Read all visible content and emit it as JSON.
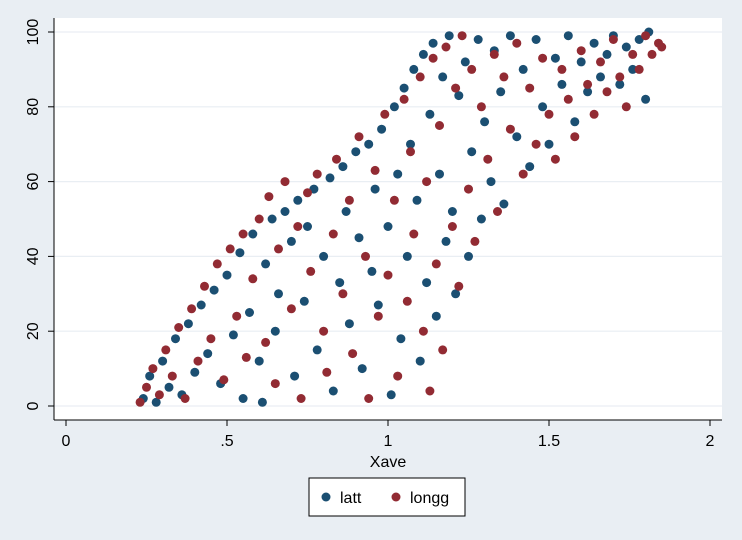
{
  "chart_data": {
    "type": "scatter",
    "title": "",
    "xlabel": "Xave",
    "ylabel": "",
    "xlim": [
      0,
      2
    ],
    "ylim": [
      0,
      100
    ],
    "x_ticks": [
      0,
      0.5,
      1,
      1.5,
      2
    ],
    "x_tick_labels": [
      "0",
      ".5",
      "1",
      "1.5",
      "2"
    ],
    "y_ticks": [
      0,
      20,
      40,
      60,
      80,
      100
    ],
    "y_tick_labels": [
      "0",
      "20",
      "40",
      "60",
      "80",
      "100"
    ],
    "grid": "horizontal",
    "legend_position": "bottom",
    "colors": {
      "background": "#e9eef3",
      "plot_area": "#ffffff",
      "grid": "#e9eef3",
      "latt": "#1b4f72",
      "longg": "#922b33"
    },
    "series": [
      {
        "name": "latt",
        "color": "#1b4f72",
        "marker": "circle",
        "points": [
          [
            0.24,
            2
          ],
          [
            0.26,
            8
          ],
          [
            0.28,
            1
          ],
          [
            0.3,
            12
          ],
          [
            0.32,
            5
          ],
          [
            0.34,
            18
          ],
          [
            0.36,
            3
          ],
          [
            0.38,
            22
          ],
          [
            0.4,
            9
          ],
          [
            0.42,
            27
          ],
          [
            0.44,
            14
          ],
          [
            0.46,
            31
          ],
          [
            0.48,
            6
          ],
          [
            0.5,
            35
          ],
          [
            0.52,
            19
          ],
          [
            0.54,
            41
          ],
          [
            0.55,
            2
          ],
          [
            0.57,
            25
          ],
          [
            0.58,
            46
          ],
          [
            0.6,
            12
          ],
          [
            0.61,
            1
          ],
          [
            0.62,
            38
          ],
          [
            0.64,
            50
          ],
          [
            0.65,
            20
          ],
          [
            0.66,
            30
          ],
          [
            0.68,
            52
          ],
          [
            0.7,
            44
          ],
          [
            0.71,
            8
          ],
          [
            0.72,
            55
          ],
          [
            0.74,
            28
          ],
          [
            0.75,
            48
          ],
          [
            0.77,
            58
          ],
          [
            0.78,
            15
          ],
          [
            0.8,
            40
          ],
          [
            0.82,
            61
          ],
          [
            0.83,
            4
          ],
          [
            0.85,
            33
          ],
          [
            0.86,
            64
          ],
          [
            0.87,
            52
          ],
          [
            0.88,
            22
          ],
          [
            0.9,
            68
          ],
          [
            0.91,
            45
          ],
          [
            0.92,
            10
          ],
          [
            0.94,
            70
          ],
          [
            0.95,
            36
          ],
          [
            0.96,
            58
          ],
          [
            0.97,
            27
          ],
          [
            0.98,
            74
          ],
          [
            1.0,
            48
          ],
          [
            1.01,
            3
          ],
          [
            1.02,
            80
          ],
          [
            1.03,
            62
          ],
          [
            1.04,
            18
          ],
          [
            1.05,
            85
          ],
          [
            1.06,
            40
          ],
          [
            1.07,
            70
          ],
          [
            1.08,
            90
          ],
          [
            1.09,
            55
          ],
          [
            1.1,
            12
          ],
          [
            1.11,
            94
          ],
          [
            1.12,
            33
          ],
          [
            1.13,
            78
          ],
          [
            1.14,
            97
          ],
          [
            1.15,
            24
          ],
          [
            1.16,
            62
          ],
          [
            1.17,
            88
          ],
          [
            1.18,
            44
          ],
          [
            1.19,
            99
          ],
          [
            1.2,
            52
          ],
          [
            1.21,
            30
          ],
          [
            1.22,
            83
          ],
          [
            1.24,
            92
          ],
          [
            1.25,
            40
          ],
          [
            1.26,
            68
          ],
          [
            1.28,
            98
          ],
          [
            1.29,
            50
          ],
          [
            1.3,
            76
          ],
          [
            1.32,
            60
          ],
          [
            1.33,
            95
          ],
          [
            1.35,
            84
          ],
          [
            1.36,
            54
          ],
          [
            1.38,
            99
          ],
          [
            1.4,
            72
          ],
          [
            1.42,
            90
          ],
          [
            1.44,
            64
          ],
          [
            1.46,
            98
          ],
          [
            1.48,
            80
          ],
          [
            1.5,
            70
          ],
          [
            1.52,
            93
          ],
          [
            1.54,
            86
          ],
          [
            1.56,
            99
          ],
          [
            1.58,
            76
          ],
          [
            1.6,
            92
          ],
          [
            1.62,
            84
          ],
          [
            1.64,
            97
          ],
          [
            1.66,
            88
          ],
          [
            1.68,
            94
          ],
          [
            1.7,
            99
          ],
          [
            1.72,
            86
          ],
          [
            1.74,
            96
          ],
          [
            1.76,
            90
          ],
          [
            1.78,
            98
          ],
          [
            1.8,
            82
          ],
          [
            1.81,
            100
          ]
        ]
      },
      {
        "name": "longg",
        "color": "#922b33",
        "marker": "circle",
        "points": [
          [
            0.23,
            1
          ],
          [
            0.25,
            5
          ],
          [
            0.27,
            10
          ],
          [
            0.29,
            3
          ],
          [
            0.31,
            15
          ],
          [
            0.33,
            8
          ],
          [
            0.35,
            21
          ],
          [
            0.37,
            2
          ],
          [
            0.39,
            26
          ],
          [
            0.41,
            12
          ],
          [
            0.43,
            32
          ],
          [
            0.45,
            18
          ],
          [
            0.47,
            38
          ],
          [
            0.49,
            7
          ],
          [
            0.51,
            42
          ],
          [
            0.53,
            24
          ],
          [
            0.55,
            46
          ],
          [
            0.56,
            13
          ],
          [
            0.58,
            34
          ],
          [
            0.6,
            50
          ],
          [
            0.62,
            17
          ],
          [
            0.63,
            56
          ],
          [
            0.65,
            6
          ],
          [
            0.66,
            42
          ],
          [
            0.68,
            60
          ],
          [
            0.7,
            26
          ],
          [
            0.72,
            48
          ],
          [
            0.73,
            2
          ],
          [
            0.75,
            57
          ],
          [
            0.76,
            36
          ],
          [
            0.78,
            62
          ],
          [
            0.8,
            20
          ],
          [
            0.81,
            9
          ],
          [
            0.83,
            46
          ],
          [
            0.84,
            66
          ],
          [
            0.86,
            30
          ],
          [
            0.88,
            55
          ],
          [
            0.89,
            14
          ],
          [
            0.91,
            72
          ],
          [
            0.93,
            40
          ],
          [
            0.94,
            2
          ],
          [
            0.96,
            63
          ],
          [
            0.97,
            24
          ],
          [
            0.99,
            78
          ],
          [
            1.0,
            35
          ],
          [
            1.02,
            55
          ],
          [
            1.03,
            8
          ],
          [
            1.05,
            82
          ],
          [
            1.06,
            28
          ],
          [
            1.07,
            68
          ],
          [
            1.08,
            46
          ],
          [
            1.1,
            88
          ],
          [
            1.11,
            20
          ],
          [
            1.12,
            60
          ],
          [
            1.13,
            4
          ],
          [
            1.14,
            93
          ],
          [
            1.15,
            38
          ],
          [
            1.16,
            75
          ],
          [
            1.17,
            15
          ],
          [
            1.18,
            96
          ],
          [
            1.2,
            48
          ],
          [
            1.21,
            85
          ],
          [
            1.22,
            32
          ],
          [
            1.23,
            99
          ],
          [
            1.25,
            58
          ],
          [
            1.26,
            90
          ],
          [
            1.27,
            44
          ],
          [
            1.29,
            80
          ],
          [
            1.31,
            66
          ],
          [
            1.33,
            94
          ],
          [
            1.34,
            52
          ],
          [
            1.36,
            88
          ],
          [
            1.38,
            74
          ],
          [
            1.4,
            97
          ],
          [
            1.42,
            62
          ],
          [
            1.44,
            85
          ],
          [
            1.46,
            70
          ],
          [
            1.48,
            93
          ],
          [
            1.5,
            78
          ],
          [
            1.52,
            66
          ],
          [
            1.54,
            90
          ],
          [
            1.56,
            82
          ],
          [
            1.58,
            72
          ],
          [
            1.6,
            95
          ],
          [
            1.62,
            86
          ],
          [
            1.64,
            78
          ],
          [
            1.66,
            92
          ],
          [
            1.68,
            84
          ],
          [
            1.7,
            98
          ],
          [
            1.72,
            88
          ],
          [
            1.74,
            80
          ],
          [
            1.76,
            94
          ],
          [
            1.78,
            90
          ],
          [
            1.8,
            99
          ],
          [
            1.82,
            94
          ],
          [
            1.84,
            97
          ],
          [
            1.85,
            96
          ]
        ]
      }
    ]
  }
}
